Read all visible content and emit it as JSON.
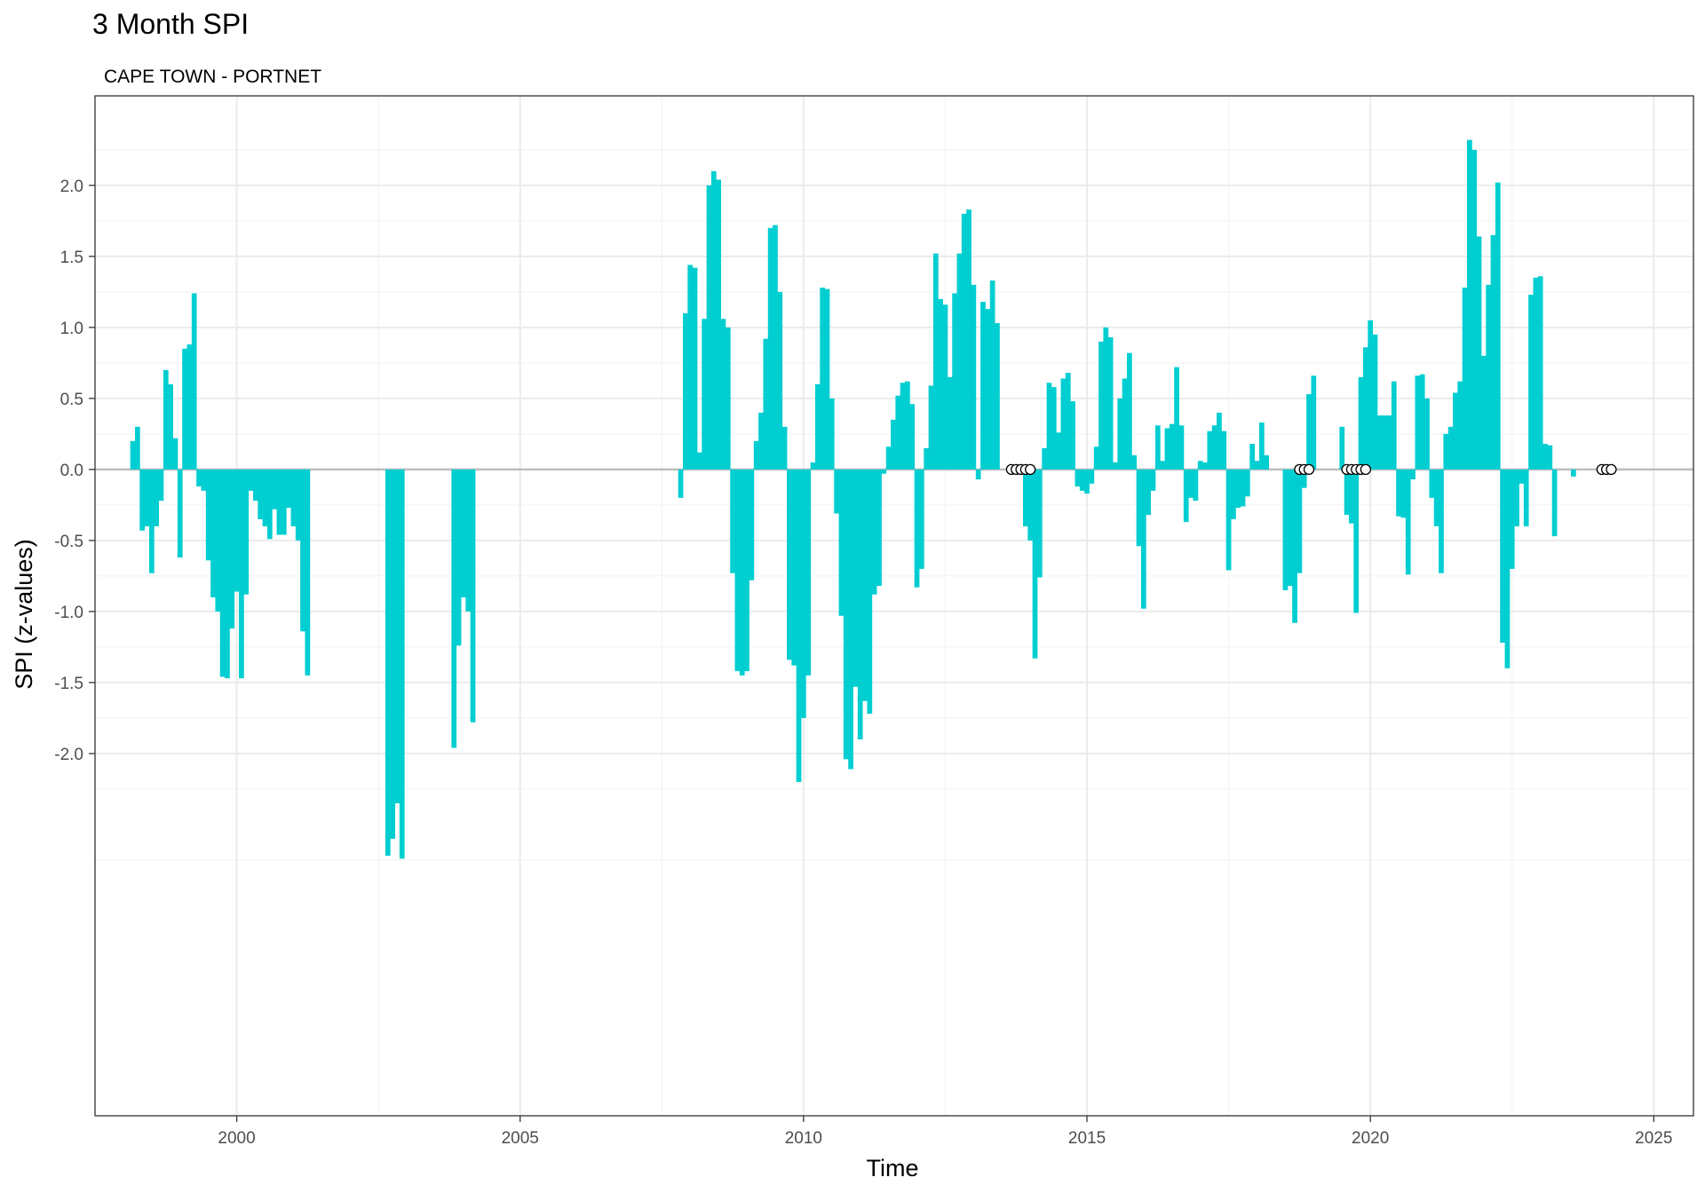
{
  "chart_data": {
    "type": "bar",
    "title": "3 Month SPI",
    "subtitle": "CAPE TOWN - PORTNET",
    "xlabel": "Time",
    "ylabel": "SPI (z-values)",
    "xlim": [
      1997.5,
      2025.7
    ],
    "ylim": [
      -4.55,
      2.63
    ],
    "x_ticks": [
      2000,
      2005,
      2010,
      2015,
      2020,
      2025
    ],
    "x_tick_labels": [
      "2000",
      "2005",
      "2010",
      "2015",
      "2020",
      "2025"
    ],
    "y_ticks": [
      -2.0,
      -1.5,
      -1.0,
      -0.5,
      0.0,
      0.5,
      1.0,
      1.5,
      2.0
    ],
    "y_tick_labels": [
      "-2.0",
      "-1.5",
      "-1.0",
      "-0.5",
      "0.0",
      "0.5",
      "1.0",
      "1.5",
      "2.0"
    ],
    "grid": true,
    "bar_color": "#00CED1",
    "zero_line_color": "#bebebe",
    "series": [
      {
        "start": "1998-03",
        "interval": "monthly",
        "values": [
          0.2,
          0.3,
          -0.43,
          -0.4,
          -0.73,
          -0.4,
          -0.22,
          0.7,
          0.6,
          0.22,
          -0.62,
          0.85,
          0.88,
          1.24,
          -0.12,
          -0.15,
          -0.64,
          -0.9,
          -1.0,
          -1.46,
          -1.47,
          -1.12,
          -0.86,
          -1.47,
          -0.88,
          -0.15,
          -0.22,
          -0.35,
          -0.4,
          -0.49,
          -0.28,
          -0.46,
          -0.46,
          -0.27,
          -0.4,
          -0.5,
          -1.14,
          -1.45,
          null,
          null,
          null,
          null,
          null,
          null,
          null,
          null,
          null,
          null,
          null,
          null,
          null,
          null,
          null,
          null,
          -2.72,
          -2.6,
          -2.35,
          -2.74,
          null,
          null,
          null,
          null,
          null,
          null,
          null,
          null,
          null,
          null,
          -1.96,
          -1.24,
          -0.9,
          -1.0,
          -1.78,
          null,
          null,
          null,
          null,
          null,
          null,
          null,
          null,
          null,
          null,
          null,
          null,
          null,
          null,
          null,
          null,
          null,
          null,
          null,
          null,
          null,
          null,
          null,
          null,
          null,
          null,
          null,
          null,
          null,
          null,
          null,
          null,
          null,
          null,
          null,
          null,
          null,
          null,
          null,
          null,
          null,
          null,
          null,
          -0.2,
          1.1,
          1.44,
          1.42,
          0.12,
          1.06,
          2.0,
          2.1,
          2.04,
          1.06,
          1.0,
          -0.73,
          -1.42,
          -1.45,
          -1.42,
          -0.78,
          0.2,
          0.4,
          0.92,
          1.7,
          1.72,
          1.25,
          0.3,
          -1.34,
          -1.38,
          -2.2,
          -1.75,
          -1.45,
          0.05,
          0.6,
          1.28,
          1.27,
          0.5,
          -0.31,
          -1.03,
          -2.04,
          -2.11,
          -1.53,
          -1.9,
          -1.63,
          -1.72,
          -0.88,
          -0.82,
          -0.03,
          0.16,
          0.35,
          0.52,
          0.61,
          0.62,
          0.46,
          -0.83,
          -0.7,
          0.15,
          0.59,
          1.52,
          1.2,
          1.16,
          0.65,
          1.24,
          1.52,
          1.8,
          1.83,
          1.3,
          -0.07,
          1.18,
          1.13,
          1.33,
          1.03,
          null,
          null,
          null,
          null,
          null,
          -0.4,
          -0.5,
          -1.33,
          -0.76,
          0.15,
          0.61,
          0.58,
          0.26,
          0.64,
          0.68,
          0.48,
          -0.12,
          -0.15,
          -0.17,
          -0.1,
          0.16,
          0.9,
          1.0,
          0.93,
          0.05,
          0.5,
          0.64,
          0.82,
          0.1,
          -0.54,
          -0.98,
          -0.32,
          -0.15,
          0.31,
          0.06,
          0.29,
          0.32,
          0.72,
          0.31,
          -0.37,
          -0.2,
          -0.22,
          0.06,
          0.05,
          0.27,
          0.31,
          0.4,
          0.27,
          -0.71,
          -0.35,
          -0.27,
          -0.26,
          -0.19,
          0.18,
          0.06,
          0.33,
          0.1,
          null,
          null,
          null,
          -0.85,
          -0.82,
          -1.08,
          -0.73,
          -0.13,
          0.53,
          0.66,
          null,
          null,
          null,
          null,
          null,
          0.3,
          -0.32,
          -0.38,
          -1.01,
          0.65,
          0.86,
          1.05,
          0.95,
          0.38,
          0.38,
          0.38,
          0.62,
          -0.33,
          -0.34,
          -0.74,
          -0.07,
          0.66,
          0.67,
          0.5,
          -0.2,
          -0.4,
          -0.73,
          0.25,
          0.3,
          0.54,
          0.62,
          1.28,
          2.32,
          2.25,
          1.64,
          0.8,
          1.3,
          1.65,
          2.02,
          -1.22,
          -1.4,
          -0.7,
          -0.4,
          -0.1,
          -0.4,
          1.23,
          1.35,
          1.36,
          0.18,
          0.17,
          -0.47,
          null,
          null,
          null,
          -0.05
        ]
      }
    ],
    "missing_markers": [
      "2013-09",
      "2013-10",
      "2013-11",
      "2013-12",
      "2014-01",
      "2018-10",
      "2018-11",
      "2018-12",
      "2019-08",
      "2019-09",
      "2019-10",
      "2019-11",
      "2019-12",
      "2024-02",
      "2024-03",
      "2024-04"
    ]
  }
}
